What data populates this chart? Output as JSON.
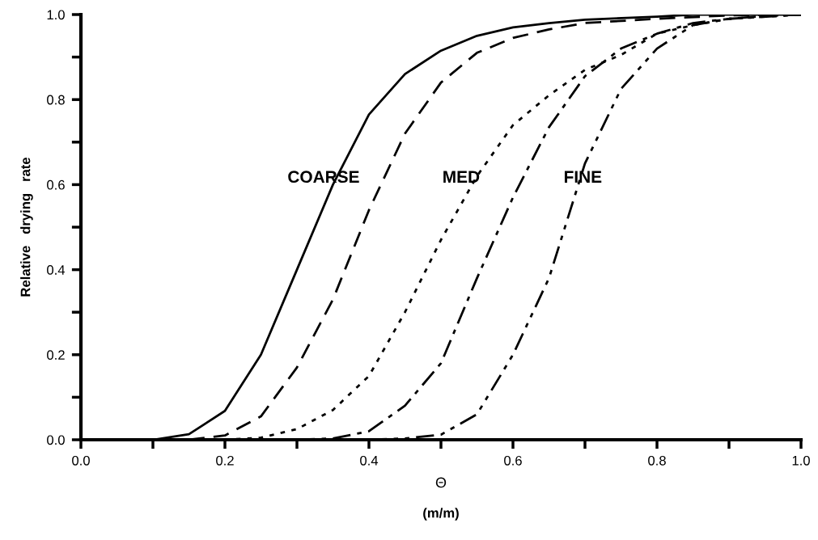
{
  "chart_data": {
    "type": "line",
    "xlabel": "Θ",
    "ylabel": "Relative   drying   rate",
    "series": [
      {
        "color": "#000000",
        "line_style": "solid",
        "x": [
          0.1,
          0.15,
          0.2,
          0.25,
          0.3,
          0.35,
          0.4,
          0.45,
          0.5,
          0.55,
          0.6,
          0.65,
          0.7,
          0.8,
          0.85,
          0.9,
          1.0
        ],
        "values": [
          0,
          0.013,
          0.068,
          0.2,
          0.4,
          0.6,
          0.765,
          0.86,
          0.915,
          0.95,
          0.97,
          0.98,
          0.988,
          0.995,
          1,
          1,
          1
        ]
      },
      {
        "color": "#000000",
        "line_style": "dashed",
        "x": [
          0.15,
          0.2,
          0.25,
          0.3,
          0.35,
          0.4,
          0.45,
          0.5,
          0.55,
          0.6,
          0.65,
          0.7,
          0.8,
          0.9,
          1.0
        ],
        "values": [
          0,
          0.01,
          0.055,
          0.17,
          0.33,
          0.54,
          0.72,
          0.84,
          0.91,
          0.945,
          0.965,
          0.98,
          0.99,
          0.998,
          1
        ]
      },
      {
        "color": "#000000",
        "line_style": "dotted",
        "x": [
          0.2,
          0.25,
          0.3,
          0.35,
          0.4,
          0.45,
          0.5,
          0.55,
          0.6,
          0.65,
          0.7,
          0.75,
          0.8,
          0.85,
          0.9,
          1.0
        ],
        "values": [
          0,
          0.005,
          0.025,
          0.07,
          0.15,
          0.3,
          0.47,
          0.62,
          0.74,
          0.81,
          0.87,
          0.905,
          0.955,
          0.975,
          0.99,
          1
        ]
      },
      {
        "color": "#000000",
        "line_style": "dashdot",
        "x": [
          0.3,
          0.35,
          0.4,
          0.45,
          0.5,
          0.55,
          0.6,
          0.65,
          0.7,
          0.75,
          0.8,
          0.85,
          0.9,
          1.0
        ],
        "values": [
          0,
          0.003,
          0.02,
          0.08,
          0.18,
          0.38,
          0.57,
          0.735,
          0.855,
          0.92,
          0.955,
          0.98,
          0.99,
          1
        ]
      },
      {
        "color": "#000000",
        "line_style": "dashdotdot",
        "x": [
          0.4,
          0.45,
          0.5,
          0.55,
          0.6,
          0.65,
          0.7,
          0.75,
          0.8,
          0.85,
          0.9,
          0.95,
          1.0
        ],
        "values": [
          0,
          0.003,
          0.012,
          0.06,
          0.2,
          0.38,
          0.65,
          0.825,
          0.92,
          0.975,
          0.99,
          0.997,
          1
        ]
      }
    ],
    "xlim": [
      0,
      1
    ],
    "ylim": [
      0,
      1
    ],
    "xticks": [
      {
        "value": 0,
        "label": "0.0"
      },
      {
        "value": 0.1,
        "label": null
      },
      0.2,
      {
        "value": 0.3,
        "label": null
      },
      0.4,
      {
        "value": 0.5,
        "label": null
      },
      0.6,
      {
        "value": 0.7,
        "label": null
      },
      0.8,
      {
        "value": 0.9,
        "label": null
      },
      {
        "value": 1,
        "label": "1.0"
      }
    ],
    "yticks": [
      {
        "value": 0,
        "label": "0.0"
      },
      {
        "value": 0.1,
        "label": null
      },
      0.2,
      {
        "value": 0.3,
        "label": null
      },
      0.4,
      {
        "value": 0.5,
        "label": null
      },
      0.6,
      {
        "value": 0.7,
        "label": null
      },
      0.8,
      {
        "value": 0.9,
        "label": null
      },
      {
        "value": 1,
        "label": "1.0"
      }
    ],
    "grid": false,
    "legend": false,
    "annotations": [
      "COARSE",
      "MED",
      "FINE",
      "(m/m)"
    ]
  }
}
